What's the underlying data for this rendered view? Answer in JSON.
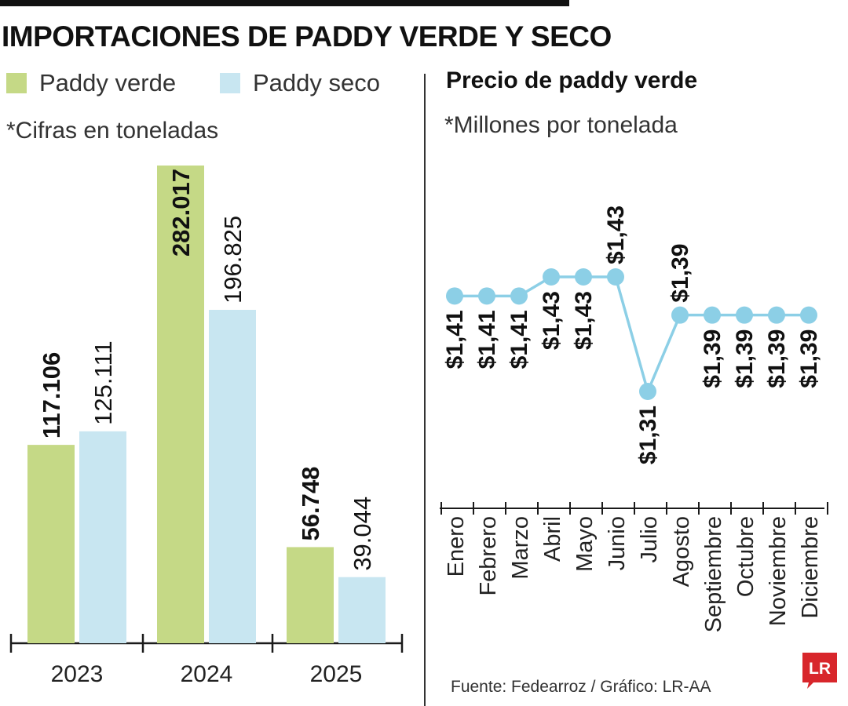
{
  "title": "IMPORTACIONES DE PADDY VERDE Y SECO",
  "legend": [
    {
      "label": "Paddy verde",
      "color": "#c5d986"
    },
    {
      "label": "Paddy seco",
      "color": "#c8e6f1"
    }
  ],
  "left_note": "*Cifras en toneladas",
  "right_title": "Precio de paddy verde",
  "right_note": "*Millones por tonelada",
  "source": "Fuente: Fedearroz / Gráfico: LR-AA",
  "logo_text": "LR",
  "colors": {
    "verde": "#c5d986",
    "seco": "#c8e6f1",
    "line": "#8ccfe6",
    "logo": "#d8262b"
  },
  "chart_data": [
    {
      "type": "bar",
      "categories": [
        "2023",
        "2024",
        "2025"
      ],
      "series": [
        {
          "name": "Paddy verde",
          "values": [
            117106,
            282017,
            56748
          ],
          "labels": [
            "117.106",
            "282.017",
            "56.748"
          ]
        },
        {
          "name": "Paddy seco",
          "values": [
            125111,
            196825,
            39044
          ],
          "labels": [
            "125.111",
            "196.825",
            "39.044"
          ]
        }
      ],
      "title": "IMPORTACIONES DE PADDY VERDE Y SECO",
      "ylim": [
        0,
        282017
      ]
    },
    {
      "type": "line",
      "title": "Precio de paddy verde",
      "categories": [
        "Enero",
        "Febrero",
        "Marzo",
        "Abril",
        "Mayo",
        "Junio",
        "Julio",
        "Agosto",
        "Septiembre",
        "Octubre",
        "Noviembre",
        "Diciembre"
      ],
      "values": [
        1.41,
        1.41,
        1.41,
        1.43,
        1.43,
        1.43,
        1.31,
        1.39,
        1.39,
        1.39,
        1.39,
        1.39
      ],
      "labels": [
        "$1,41",
        "$1,41",
        "$1,41",
        "$1,43",
        "$1,43",
        "$1,43",
        "$1,31",
        "$1,39",
        "$1,39",
        "$1,39",
        "$1,39",
        "$1,39"
      ]
    }
  ]
}
